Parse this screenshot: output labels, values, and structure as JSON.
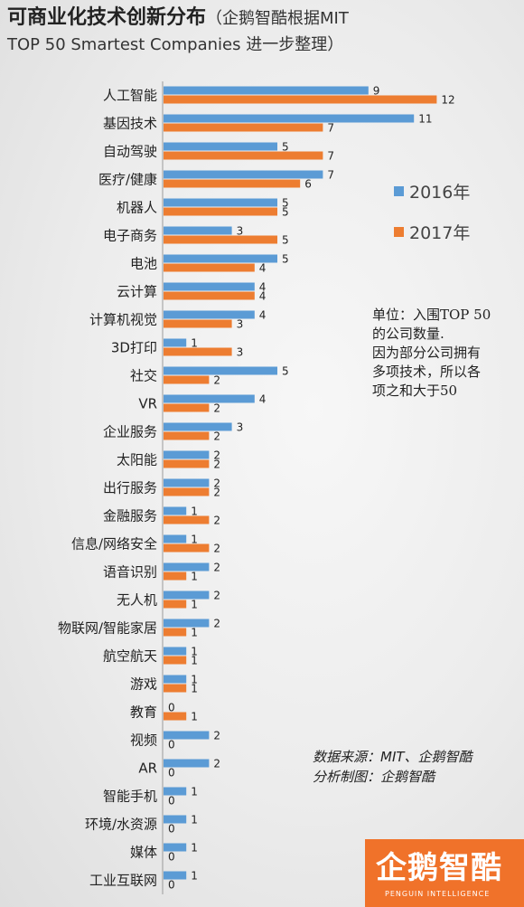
{
  "title": {
    "main": "可商业化技术创新分布",
    "sub_line1": "（企鹅智酷根据MIT",
    "sub_line2": "TOP 50 Smartest Companies 进一步整理）"
  },
  "colors": {
    "s2016": "#5b9bd5",
    "s2017": "#ed7d31"
  },
  "note": {
    "line1": "单位：入围TOP 50",
    "line2": "的公司数量.",
    "line3": "因为部分公司拥有",
    "line4": "多项技术，所以各",
    "line5": "项之和大于50"
  },
  "source": {
    "line1": "数据来源：MIT、企鹅智酷",
    "line2": "分析制图：企鹅智酷"
  },
  "logo": {
    "text": "企鹅智酷",
    "sub": "PENGUIN INTELLIGENCE"
  },
  "chart_data": {
    "type": "bar",
    "orientation": "horizontal",
    "categories": [
      "人工智能",
      "基因技术",
      "自动驾驶",
      "医疗/健康",
      "机器人",
      "电子商务",
      "电池",
      "云计算",
      "计算机视觉",
      "3D打印",
      "社交",
      "VR",
      "企业服务",
      "太阳能",
      "出行服务",
      "金融服务",
      "信息/网络安全",
      "语音识别",
      "无人机",
      "物联网/智能家居",
      "航空航天",
      "游戏",
      "教育",
      "视频",
      "AR",
      "智能手机",
      "环境/水资源",
      "媒体",
      "工业互联网"
    ],
    "series": [
      {
        "name": "2016年",
        "color": "#5b9bd5",
        "values": [
          9,
          11,
          5,
          7,
          5,
          3,
          5,
          4,
          4,
          1,
          5,
          4,
          3,
          2,
          2,
          1,
          1,
          2,
          2,
          2,
          1,
          1,
          0,
          2,
          2,
          1,
          1,
          1,
          1
        ]
      },
      {
        "name": "2017年",
        "color": "#ed7d31",
        "values": [
          12,
          7,
          7,
          6,
          5,
          5,
          4,
          4,
          3,
          3,
          2,
          2,
          2,
          2,
          2,
          2,
          2,
          1,
          1,
          1,
          1,
          1,
          1,
          0,
          0,
          0,
          0,
          0,
          0
        ]
      }
    ],
    "xlim": [
      0,
      12
    ],
    "legend_position": "right",
    "grid": false
  }
}
